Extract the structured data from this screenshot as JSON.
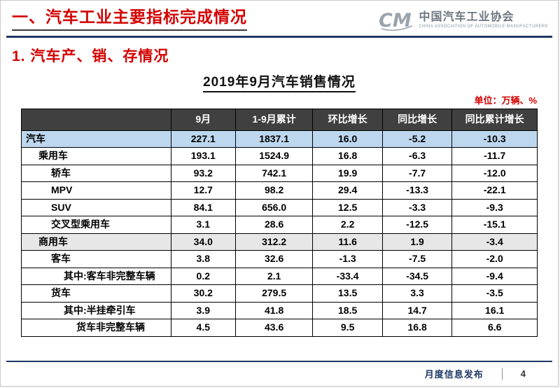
{
  "header": {
    "title": "一、汽车工业主要指标完成情况",
    "logo": {
      "mark": "caam-logo",
      "org_name": "中国汽车工业协会",
      "org_name_en": "CHINA ASSOCIATION OF AUTOMOBILE MANUFACTURERS"
    }
  },
  "section": {
    "title": "1. 汽车产、销、存情况"
  },
  "table": {
    "title": "2019年9月汽车销售情况",
    "unit_note": "单位：万辆、%",
    "columns": [
      "",
      "9月",
      "1-9月累计",
      "环比增长",
      "同比增长",
      "同比累计增长"
    ],
    "rows": [
      {
        "label": "汽车",
        "indent": 0,
        "highlight": "blue",
        "values": [
          "227.1",
          "1837.1",
          "16.0",
          "-5.2",
          "-10.3"
        ]
      },
      {
        "label": "乘用车",
        "indent": 1,
        "highlight": "",
        "values": [
          "193.1",
          "1524.9",
          "16.8",
          "-6.3",
          "-11.7"
        ]
      },
      {
        "label": "轿车",
        "indent": 2,
        "highlight": "",
        "values": [
          "93.2",
          "742.1",
          "19.9",
          "-7.7",
          "-12.0"
        ]
      },
      {
        "label": "MPV",
        "indent": 2,
        "highlight": "",
        "values": [
          "12.7",
          "98.2",
          "29.4",
          "-13.3",
          "-22.1"
        ]
      },
      {
        "label": "SUV",
        "indent": 2,
        "highlight": "",
        "values": [
          "84.1",
          "656.0",
          "12.5",
          "-3.3",
          "-9.3"
        ]
      },
      {
        "label": "交叉型乘用车",
        "indent": 2,
        "highlight": "",
        "values": [
          "3.1",
          "28.6",
          "2.2",
          "-12.5",
          "-15.1"
        ]
      },
      {
        "label": "商用车",
        "indent": 1,
        "highlight": "gray",
        "values": [
          "34.0",
          "312.2",
          "11.6",
          "1.9",
          "-3.4"
        ]
      },
      {
        "label": "客车",
        "indent": 2,
        "highlight": "",
        "values": [
          "3.8",
          "32.6",
          "-1.3",
          "-7.5",
          "-2.0"
        ]
      },
      {
        "label": "其中:客车非完整车辆",
        "indent": 3,
        "highlight": "",
        "values": [
          "0.2",
          "2.1",
          "-33.4",
          "-34.5",
          "-9.4"
        ]
      },
      {
        "label": "货车",
        "indent": 2,
        "highlight": "",
        "values": [
          "30.2",
          "279.5",
          "13.5",
          "3.3",
          "-3.5"
        ]
      },
      {
        "label": "其中:半挂牵引车",
        "indent": 3,
        "highlight": "",
        "values": [
          "3.9",
          "41.8",
          "18.5",
          "14.7",
          "16.1"
        ]
      },
      {
        "label": "货车非完整车辆",
        "indent": 4,
        "highlight": "",
        "values": [
          "4.5",
          "43.6",
          "9.5",
          "16.8",
          "6.6"
        ]
      }
    ]
  },
  "footer": {
    "label": "月度信息发布",
    "page_number": "4"
  },
  "colors": {
    "accent_red": "#d40000",
    "navy": "#1f3864",
    "table_header_bg": "#404040",
    "highlight_blue": "#bdd7ee",
    "highlight_gray": "#e7e7e7"
  }
}
